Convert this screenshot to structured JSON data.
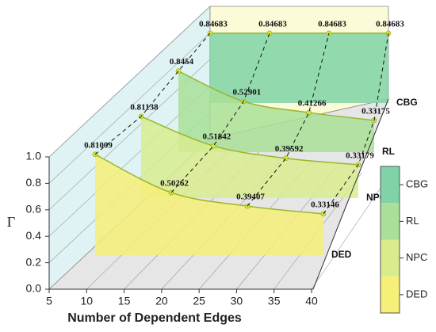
{
  "chart_data": {
    "type": "waterfall3d",
    "xlabel": "Number of Dependent Edges",
    "ylabel": "Γ",
    "x": [
      10,
      20,
      30,
      40
    ],
    "xlim": [
      5,
      40
    ],
    "xticks": [
      5,
      10,
      15,
      20,
      25,
      30,
      35,
      40
    ],
    "ylim": [
      0,
      1
    ],
    "yticks": [
      {
        "value": 0,
        "label": "0.0"
      },
      0.2,
      0.4,
      0.6,
      0.8,
      {
        "value": 1,
        "label": "1.0"
      }
    ],
    "grid": true,
    "legend": "right",
    "series": [
      {
        "name": "DED",
        "color": "#f6ef78",
        "values": [
          0.81009,
          0.50262,
          0.39407,
          0.33146
        ]
      },
      {
        "name": "NPC",
        "color": "#d8ec8e",
        "values": [
          0.81138,
          0.51842,
          0.39592,
          0.33179
        ]
      },
      {
        "name": "RL",
        "color": "#a9df98",
        "values": [
          0.8454,
          0.52901,
          0.41266,
          0.33175
        ]
      },
      {
        "name": "CBG",
        "color": "#7fd3a6",
        "values": [
          0.84683,
          0.84683,
          0.84683,
          0.84683
        ]
      }
    ]
  }
}
